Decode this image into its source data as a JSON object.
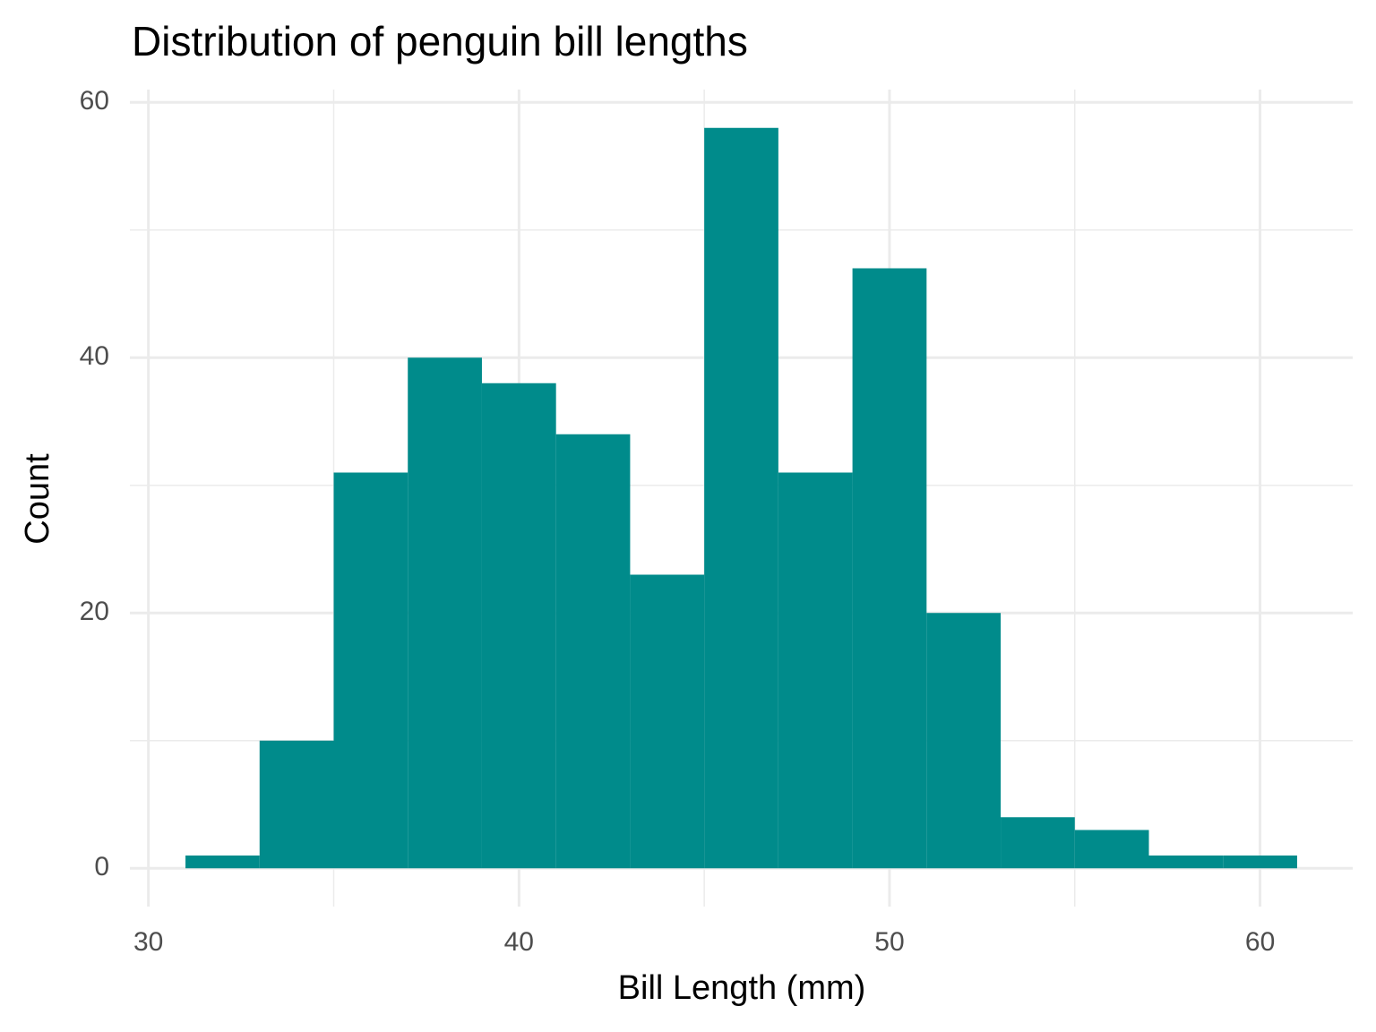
{
  "chart_data": {
    "type": "histogram",
    "title": "Distribution of penguin bill lengths",
    "x_label": "Bill Length (mm)",
    "y_label": "Count",
    "bins": [
      31,
      33,
      35,
      37,
      39,
      41,
      43,
      45,
      47,
      49,
      51,
      53,
      55,
      57,
      59,
      61
    ],
    "values": [
      1,
      10,
      31,
      40,
      38,
      34,
      23,
      58,
      31,
      47,
      20,
      4,
      3,
      1,
      1
    ],
    "color": "#008b8b",
    "xlim": [
      29.5,
      62.5
    ],
    "ylim": [
      -3,
      61
    ],
    "xticks": [
      30,
      40,
      50,
      60
    ],
    "yticks": [
      0,
      20,
      40,
      60
    ],
    "minor_xticks": [
      35,
      45,
      55
    ],
    "minor_yticks": [
      10,
      30,
      50
    ],
    "grid": true
  }
}
